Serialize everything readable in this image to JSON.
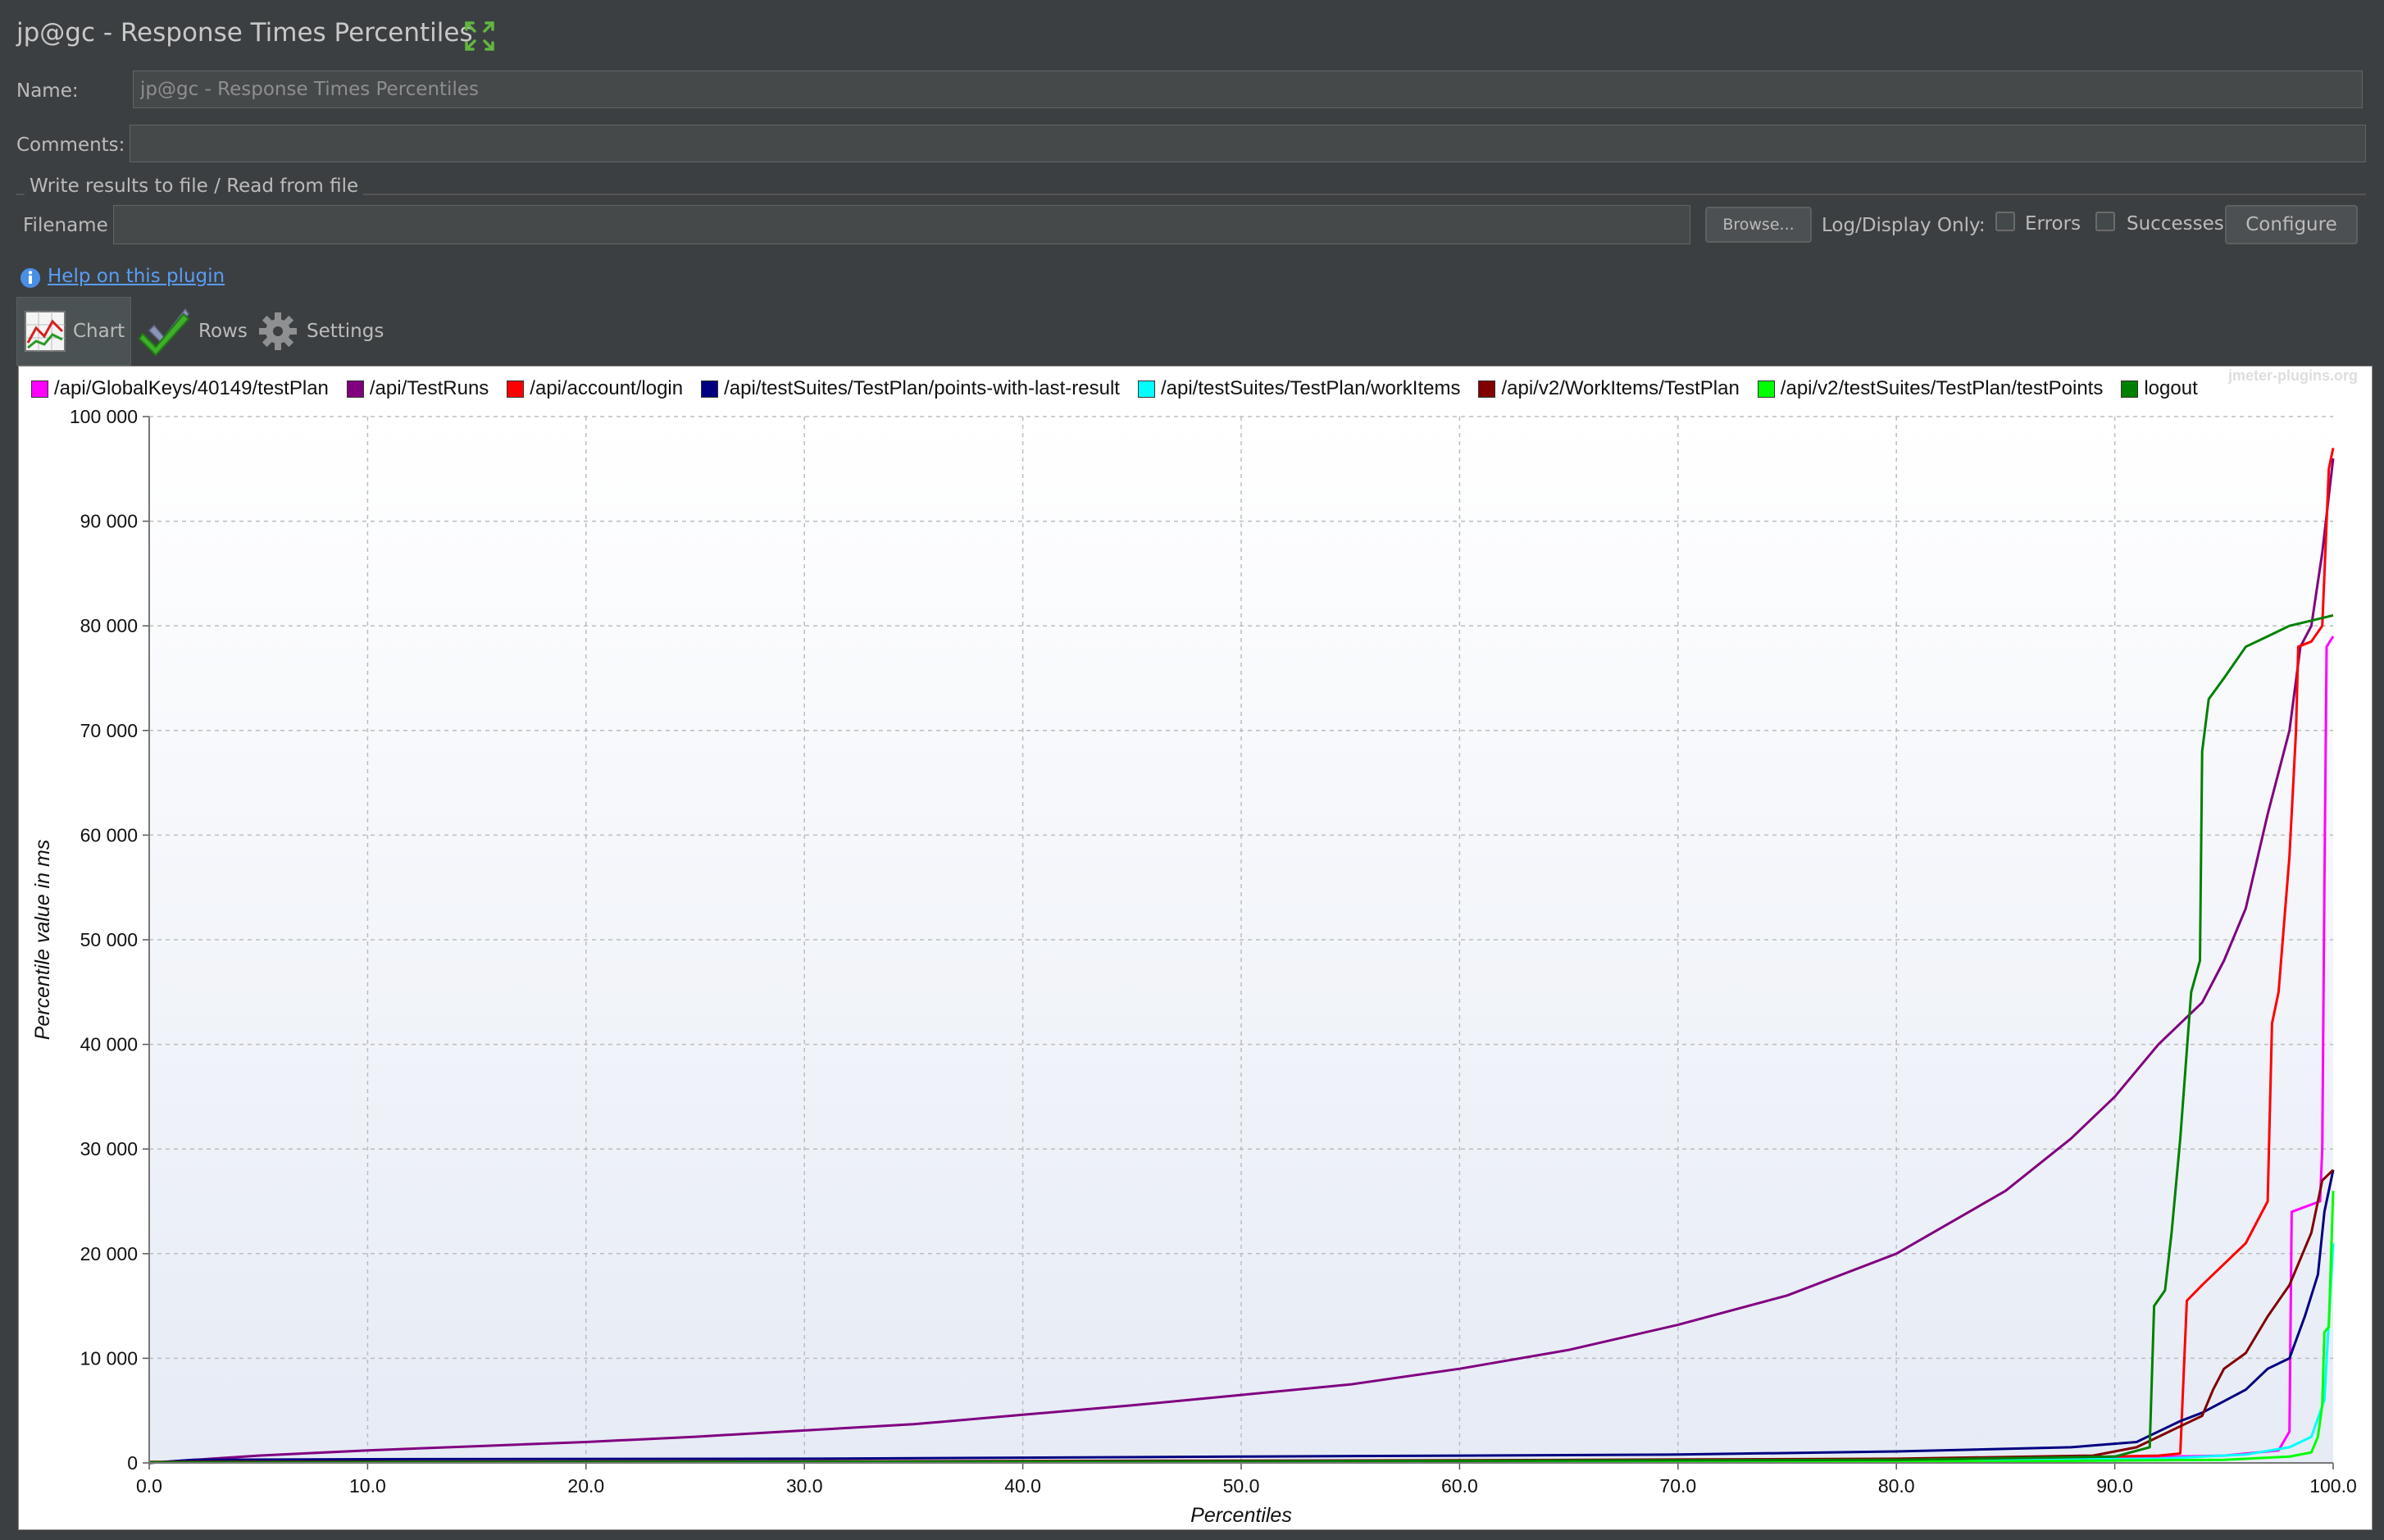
{
  "window": {
    "title": "jp@gc - Response Times Percentiles",
    "expand_icon": "expand-arrows-icon"
  },
  "form": {
    "name_label": "Name:",
    "name_value": "jp@gc - Response Times Percentiles",
    "comments_label": "Comments:",
    "comments_value": "",
    "file_group_title": "Write results to file / Read from file",
    "filename_label": "Filename",
    "filename_value": "",
    "browse_label": "Browse...",
    "log_display_label": "Log/Display Only:",
    "errors_label": "Errors",
    "errors_checked": false,
    "successes_label": "Successes",
    "successes_checked": false,
    "configure_label": "Configure",
    "help_link": "Help on this plugin"
  },
  "tabs": [
    {
      "label": "Chart",
      "icon": "line-chart-icon",
      "active": true
    },
    {
      "label": "Rows",
      "icon": "checkmark-icon",
      "active": false
    },
    {
      "label": "Settings",
      "icon": "gear-icon",
      "active": false
    }
  ],
  "chart_data": {
    "type": "line",
    "title": "",
    "xlabel": "Percentiles",
    "ylabel": "Percentile value in ms",
    "xlim": [
      0,
      100
    ],
    "ylim": [
      0,
      100000
    ],
    "x_ticks": [
      "0.0",
      "10.0",
      "20.0",
      "30.0",
      "40.0",
      "50.0",
      "60.0",
      "70.0",
      "80.0",
      "90.0",
      "100.0"
    ],
    "y_ticks": [
      "0",
      "10 000",
      "20 000",
      "30 000",
      "40 000",
      "50 000",
      "60 000",
      "70 000",
      "80 000",
      "90 000",
      "100 000"
    ],
    "grid": true,
    "legend_position": "top",
    "watermark": "jmeter-plugins.org",
    "series": [
      {
        "name": "/api/GlobalKeys/40149/testPlan",
        "color": "#ff00ff",
        "points": [
          [
            0,
            50
          ],
          [
            50,
            100
          ],
          [
            85,
            300
          ],
          [
            95,
            700
          ],
          [
            97.5,
            1200
          ],
          [
            98,
            3000
          ],
          [
            98.1,
            24000
          ],
          [
            99.4,
            25000
          ],
          [
            99.5,
            30000
          ],
          [
            99.6,
            55000
          ],
          [
            99.7,
            78000
          ],
          [
            100,
            79000
          ]
        ]
      },
      {
        "name": "/api/TestRuns",
        "color": "#800080",
        "points": [
          [
            0,
            0
          ],
          [
            5,
            700
          ],
          [
            10,
            1200
          ],
          [
            15,
            1600
          ],
          [
            20,
            2000
          ],
          [
            25,
            2500
          ],
          [
            30,
            3100
          ],
          [
            35,
            3700
          ],
          [
            40,
            4600
          ],
          [
            45,
            5500
          ],
          [
            50,
            6500
          ],
          [
            55,
            7500
          ],
          [
            60,
            9000
          ],
          [
            65,
            10800
          ],
          [
            70,
            13200
          ],
          [
            75,
            16000
          ],
          [
            80,
            20000
          ],
          [
            85,
            26000
          ],
          [
            88,
            31000
          ],
          [
            90,
            35000
          ],
          [
            92,
            40000
          ],
          [
            93,
            42000
          ],
          [
            94,
            44000
          ],
          [
            95,
            48000
          ],
          [
            96,
            53000
          ],
          [
            97,
            62000
          ],
          [
            98,
            70000
          ],
          [
            98.5,
            78000
          ],
          [
            99,
            80000
          ],
          [
            99.5,
            87000
          ],
          [
            100,
            96000
          ]
        ]
      },
      {
        "name": "/api/account/login",
        "color": "#ff0000",
        "points": [
          [
            0,
            50
          ],
          [
            80,
            200
          ],
          [
            92,
            700
          ],
          [
            93,
            900
          ],
          [
            93.3,
            15500
          ],
          [
            94,
            17000
          ],
          [
            96,
            21000
          ],
          [
            97,
            25000
          ],
          [
            97.2,
            42000
          ],
          [
            97.5,
            45000
          ],
          [
            98,
            58000
          ],
          [
            98.3,
            70000
          ],
          [
            98.4,
            78000
          ],
          [
            99,
            78500
          ],
          [
            99.5,
            80000
          ],
          [
            99.8,
            95000
          ],
          [
            100,
            97000
          ]
        ]
      },
      {
        "name": "/api/testSuites/TestPlan/points-with-last-result",
        "color": "#000080",
        "points": [
          [
            0,
            0
          ],
          [
            2,
            300
          ],
          [
            10,
            350
          ],
          [
            30,
            400
          ],
          [
            50,
            600
          ],
          [
            60,
            700
          ],
          [
            70,
            800
          ],
          [
            80,
            1100
          ],
          [
            88,
            1500
          ],
          [
            91,
            2000
          ],
          [
            92,
            3000
          ],
          [
            93,
            4000
          ],
          [
            94,
            4800
          ],
          [
            96,
            7000
          ],
          [
            97,
            9000
          ],
          [
            98,
            10000
          ],
          [
            98.7,
            14000
          ],
          [
            99.3,
            18000
          ],
          [
            99.6,
            24000
          ],
          [
            100,
            28000
          ]
        ]
      },
      {
        "name": "/api/testSuites/TestPlan/workItems",
        "color": "#00ffff",
        "points": [
          [
            0,
            50
          ],
          [
            60,
            100
          ],
          [
            80,
            200
          ],
          [
            92,
            400
          ],
          [
            96,
            800
          ],
          [
            98,
            1500
          ],
          [
            99,
            2500
          ],
          [
            99.6,
            6000
          ],
          [
            100,
            21000
          ]
        ]
      },
      {
        "name": "/api/v2/WorkItems/TestPlan",
        "color": "#800000",
        "points": [
          [
            0,
            100
          ],
          [
            30,
            150
          ],
          [
            60,
            250
          ],
          [
            80,
            400
          ],
          [
            89,
            700
          ],
          [
            91,
            1500
          ],
          [
            92,
            2500
          ],
          [
            93,
            3500
          ],
          [
            94,
            4500
          ],
          [
            94.5,
            7000
          ],
          [
            95,
            9000
          ],
          [
            96,
            10500
          ],
          [
            97,
            14000
          ],
          [
            97.5,
            15500
          ],
          [
            98,
            17000
          ],
          [
            99,
            22000
          ],
          [
            99.5,
            27000
          ],
          [
            100,
            28000
          ]
        ]
      },
      {
        "name": "/api/v2/testSuites/TestPlan/testPoints",
        "color": "#00ff00",
        "points": [
          [
            0,
            50
          ],
          [
            50,
            80
          ],
          [
            85,
            150
          ],
          [
            95,
            300
          ],
          [
            98,
            600
          ],
          [
            99,
            1000
          ],
          [
            99.3,
            2500
          ],
          [
            99.5,
            5500
          ],
          [
            99.6,
            12500
          ],
          [
            99.8,
            13000
          ],
          [
            100,
            26000
          ]
        ]
      },
      {
        "name": "logout",
        "color": "#008000",
        "points": [
          [
            0,
            50
          ],
          [
            50,
            150
          ],
          [
            80,
            300
          ],
          [
            90,
            600
          ],
          [
            91.6,
            1500
          ],
          [
            91.8,
            15000
          ],
          [
            92.3,
            16500
          ],
          [
            92.6,
            22000
          ],
          [
            93,
            31000
          ],
          [
            93.5,
            45000
          ],
          [
            93.9,
            48000
          ],
          [
            94,
            68000
          ],
          [
            94.3,
            73000
          ],
          [
            95,
            75000
          ],
          [
            96,
            78000
          ],
          [
            97,
            79000
          ],
          [
            98,
            80000
          ],
          [
            99,
            80500
          ],
          [
            100,
            81000
          ]
        ]
      }
    ]
  }
}
